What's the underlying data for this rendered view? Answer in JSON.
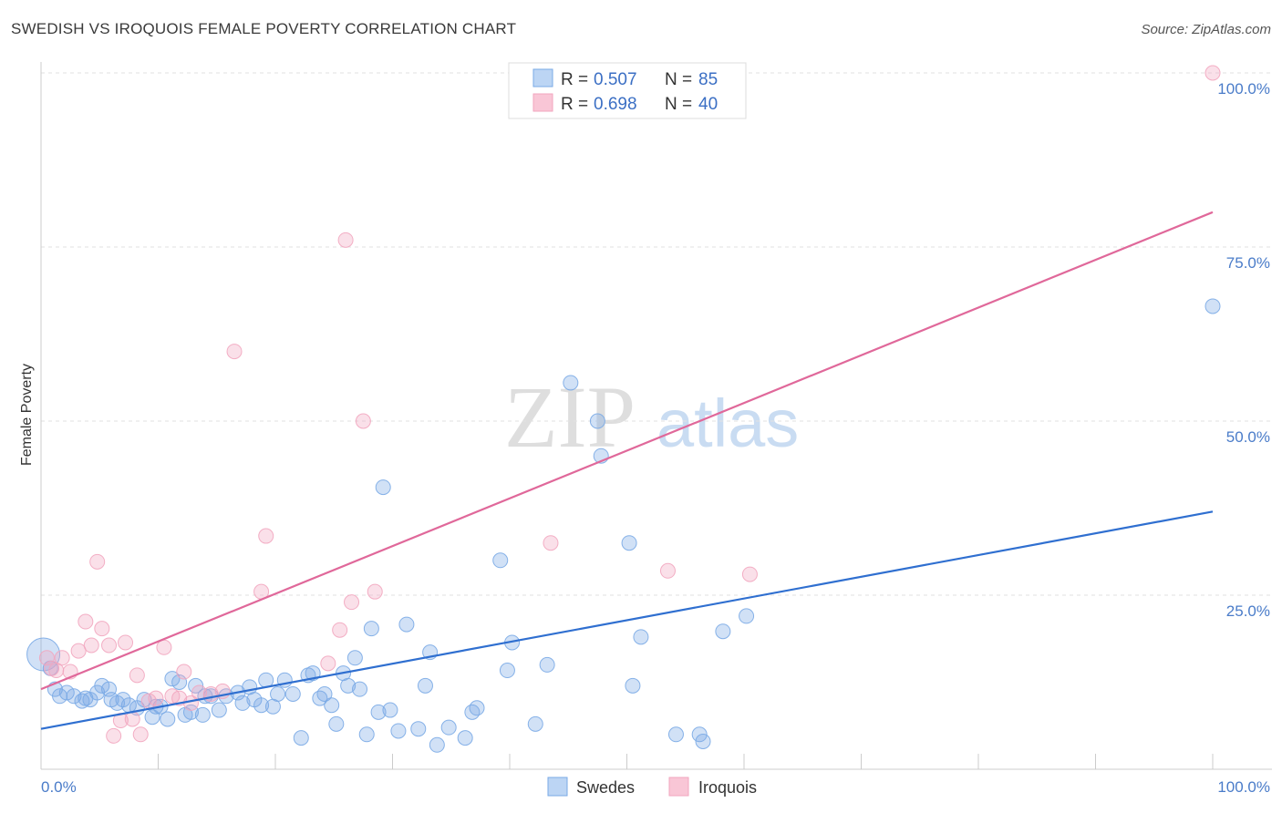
{
  "title": "SWEDISH VS IROQUOIS FEMALE POVERTY CORRELATION CHART",
  "source": "Source: ZipAtlas.com",
  "watermark": {
    "zip": "ZIP",
    "atlas": "atlas"
  },
  "legend": {
    "r_label": "R =",
    "n_label": "N =",
    "swedes": {
      "r": "0.507",
      "n": "85"
    },
    "iroquois": {
      "r": "0.698",
      "n": "40"
    }
  },
  "chart_data": {
    "type": "scatter",
    "title": "SWEDISH VS IROQUOIS FEMALE POVERTY CORRELATION CHART",
    "xlabel": "",
    "ylabel": "Female Poverty",
    "xlim": [
      0,
      100
    ],
    "ylim": [
      0,
      100
    ],
    "x_tick_labels": [
      "0.0%",
      "100.0%"
    ],
    "y_tick_labels": [
      "25.0%",
      "50.0%",
      "75.0%",
      "100.0%"
    ],
    "y_ticks": [
      25,
      50,
      75,
      100
    ],
    "grid": true,
    "legend_position": "top-center and bottom",
    "colors": {
      "swedes": "#7aaae6",
      "swedes_line": "#2f6fd0",
      "iroquois": "#f2a6bf",
      "iroquois_line": "#e0689a"
    },
    "series": [
      {
        "name": "Swedes",
        "trend": [
          [
            0,
            5.8
          ],
          [
            100,
            37.0
          ]
        ],
        "points": [
          [
            0.2,
            16.5
          ],
          [
            0.8,
            14.5
          ],
          [
            1.2,
            11.5
          ],
          [
            1.6,
            10.5
          ],
          [
            2.2,
            11.0
          ],
          [
            2.8,
            10.5
          ],
          [
            3.5,
            9.8
          ],
          [
            3.8,
            10.2
          ],
          [
            4.2,
            10.0
          ],
          [
            4.8,
            11.0
          ],
          [
            5.2,
            12.0
          ],
          [
            5.8,
            11.5
          ],
          [
            6.5,
            9.5
          ],
          [
            7.0,
            10.0
          ],
          [
            7.5,
            9.2
          ],
          [
            8.2,
            8.8
          ],
          [
            8.8,
            10.0
          ],
          [
            9.5,
            7.5
          ],
          [
            10.2,
            9.0
          ],
          [
            10.8,
            7.2
          ],
          [
            11.2,
            13.0
          ],
          [
            11.8,
            12.5
          ],
          [
            12.3,
            7.8
          ],
          [
            12.8,
            8.2
          ],
          [
            13.2,
            12.0
          ],
          [
            13.8,
            7.8
          ],
          [
            14.5,
            10.5
          ],
          [
            15.2,
            8.5
          ],
          [
            15.8,
            10.5
          ],
          [
            16.8,
            11.0
          ],
          [
            17.2,
            9.5
          ],
          [
            17.8,
            11.8
          ],
          [
            18.2,
            10.0
          ],
          [
            18.8,
            9.2
          ],
          [
            19.2,
            12.8
          ],
          [
            19.8,
            9.0
          ],
          [
            20.2,
            10.8
          ],
          [
            20.8,
            12.8
          ],
          [
            21.5,
            10.8
          ],
          [
            22.2,
            4.5
          ],
          [
            22.8,
            13.5
          ],
          [
            23.2,
            13.8
          ],
          [
            23.8,
            10.2
          ],
          [
            24.2,
            10.8
          ],
          [
            24.8,
            9.2
          ],
          [
            25.2,
            6.5
          ],
          [
            25.8,
            13.8
          ],
          [
            26.2,
            12.0
          ],
          [
            26.8,
            16.0
          ],
          [
            27.2,
            11.5
          ],
          [
            27.8,
            5.0
          ],
          [
            28.2,
            20.2
          ],
          [
            28.8,
            8.2
          ],
          [
            29.2,
            40.5
          ],
          [
            29.8,
            8.5
          ],
          [
            30.5,
            5.5
          ],
          [
            31.2,
            20.8
          ],
          [
            32.2,
            5.8
          ],
          [
            32.8,
            12.0
          ],
          [
            33.2,
            16.8
          ],
          [
            33.8,
            3.5
          ],
          [
            34.8,
            6.0
          ],
          [
            36.2,
            4.5
          ],
          [
            36.8,
            8.2
          ],
          [
            37.2,
            8.8
          ],
          [
            39.2,
            30.0
          ],
          [
            39.8,
            14.2
          ],
          [
            40.2,
            18.2
          ],
          [
            42.2,
            6.5
          ],
          [
            43.2,
            15.0
          ],
          [
            45.2,
            55.5
          ],
          [
            47.5,
            50.0
          ],
          [
            47.8,
            45.0
          ],
          [
            50.2,
            32.5
          ],
          [
            50.5,
            12.0
          ],
          [
            51.2,
            19.0
          ],
          [
            54.2,
            5.0
          ],
          [
            56.2,
            5.0
          ],
          [
            56.5,
            4.0
          ],
          [
            58.2,
            19.8
          ],
          [
            60.2,
            22.0
          ],
          [
            100,
            66.5
          ],
          [
            14.0,
            10.5
          ],
          [
            6.0,
            10.0
          ],
          [
            9.8,
            9.0
          ]
        ]
      },
      {
        "name": "Iroquois",
        "trend": [
          [
            0,
            11.5
          ],
          [
            100,
            80.0
          ]
        ],
        "points": [
          [
            0.5,
            16.0
          ],
          [
            0.9,
            14.5
          ],
          [
            1.3,
            14.2
          ],
          [
            1.8,
            16.0
          ],
          [
            2.5,
            14.0
          ],
          [
            3.2,
            17.0
          ],
          [
            3.8,
            21.2
          ],
          [
            4.3,
            17.8
          ],
          [
            4.8,
            29.8
          ],
          [
            5.2,
            20.2
          ],
          [
            5.8,
            17.8
          ],
          [
            6.2,
            4.8
          ],
          [
            6.8,
            7.0
          ],
          [
            7.2,
            18.2
          ],
          [
            7.8,
            7.2
          ],
          [
            8.2,
            13.5
          ],
          [
            8.5,
            5.0
          ],
          [
            9.2,
            9.8
          ],
          [
            9.8,
            10.2
          ],
          [
            10.5,
            17.5
          ],
          [
            11.2,
            10.5
          ],
          [
            11.8,
            10.2
          ],
          [
            12.2,
            14.0
          ],
          [
            12.8,
            9.5
          ],
          [
            13.5,
            11.0
          ],
          [
            14.5,
            10.8
          ],
          [
            15.5,
            11.2
          ],
          [
            16.5,
            60.0
          ],
          [
            18.8,
            25.5
          ],
          [
            19.2,
            33.5
          ],
          [
            24.5,
            15.2
          ],
          [
            25.5,
            20.0
          ],
          [
            26.0,
            76.0
          ],
          [
            26.5,
            24.0
          ],
          [
            27.5,
            50.0
          ],
          [
            28.5,
            25.5
          ],
          [
            43.5,
            32.5
          ],
          [
            53.5,
            28.5
          ],
          [
            60.5,
            28.0
          ],
          [
            100,
            100.0
          ]
        ]
      }
    ]
  }
}
